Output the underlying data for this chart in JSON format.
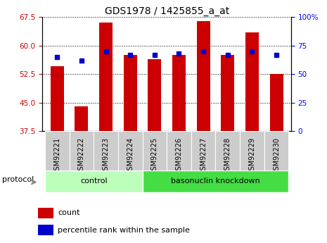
{
  "title": "GDS1978 / 1425855_a_at",
  "samples": [
    "GSM92221",
    "GSM92222",
    "GSM92223",
    "GSM92224",
    "GSM92225",
    "GSM92226",
    "GSM92227",
    "GSM92228",
    "GSM92229",
    "GSM92230"
  ],
  "count_values": [
    54.5,
    44.0,
    66.0,
    57.5,
    56.5,
    57.5,
    66.5,
    57.5,
    63.5,
    52.5
  ],
  "percentile_values": [
    65,
    62,
    70,
    67,
    67,
    68,
    70,
    67,
    70,
    67
  ],
  "ylim_left": [
    37.5,
    67.5
  ],
  "ylim_right": [
    0,
    100
  ],
  "yticks_left": [
    37.5,
    45.0,
    52.5,
    60.0,
    67.5
  ],
  "yticks_right": [
    0,
    25,
    50,
    75,
    100
  ],
  "bar_color": "#cc0000",
  "scatter_color": "#0000cc",
  "bg_color": "#ffffff",
  "control_label": "control",
  "knockdown_label": "basonuclin knockdown",
  "protocol_label": "protocol",
  "legend_count": "count",
  "legend_percentile": "percentile rank within the sample",
  "bar_width": 0.55,
  "control_bg": "#bbffbb",
  "knockdown_bg": "#44dd44",
  "xtick_bg": "#cccccc",
  "n_control": 4,
  "n_knockdown": 6
}
